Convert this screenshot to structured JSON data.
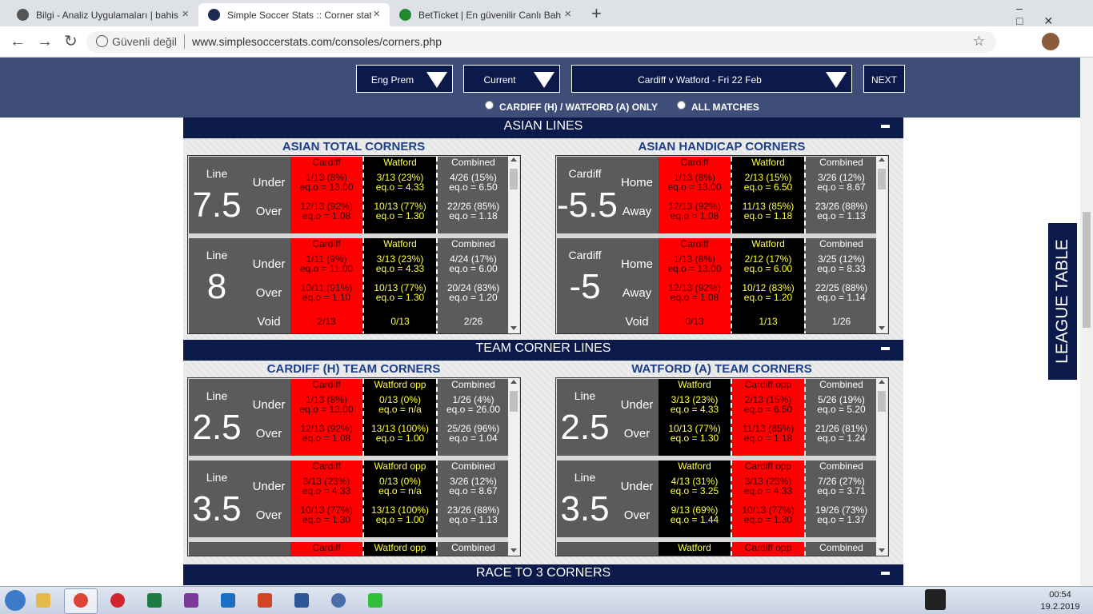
{
  "browser": {
    "tabs": [
      "Bilgi - Analiz Uygulamaları | bahis",
      "Simple Soccer Stats :: Corner stat",
      "BetTicket | En güvenilir Canlı Bah"
    ],
    "security": "Güvenli değil",
    "url": "www.simplesoccerstats.com/consoles/corners.php"
  },
  "header": {
    "selects": [
      "Eng Prem",
      "Current",
      "Cardiff v Watford - Fri 22 Feb"
    ],
    "next": "NEXT",
    "radios": [
      "CARDIFF (H) / WATFORD (A) ONLY",
      "ALL MATCHES"
    ]
  },
  "sections": [
    {
      "title": "ASIAN LINES",
      "panels": [
        {
          "title": "ASIAN TOTAL CORNERS",
          "headers": [
            "Cardiff",
            "Watford",
            "Combined"
          ],
          "colors": [
            "#ff0000",
            "#000000",
            "#5b5b5b"
          ],
          "text_colors": [
            "#3a0000",
            "#ffff33",
            "#ffffff"
          ],
          "blocks": [
            {
              "label": "Line",
              "line": "7.5",
              "rows": [
                "Under",
                "Over"
              ],
              "cells": [
                [
                  [
                    "1/13 (8%)",
                    "eq.o = 13.00"
                  ],
                  [
                    "3/13 (23%)",
                    "eq.o = 4.33"
                  ],
                  [
                    "4/26 (15%)",
                    "eq.o = 6.50"
                  ]
                ],
                [
                  [
                    "12/13 (92%)",
                    "eq.o = 1.08"
                  ],
                  [
                    "10/13 (77%)",
                    "eq.o = 1.30"
                  ],
                  [
                    "22/26 (85%)",
                    "eq.o = 1.18"
                  ]
                ]
              ]
            },
            {
              "label": "Line",
              "line": "8",
              "rows": [
                "Under",
                "Over",
                "Void"
              ],
              "cells": [
                [
                  [
                    "1/11 (9%)",
                    "eq.o = 11.00"
                  ],
                  [
                    "3/13 (23%)",
                    "eq.o = 4.33"
                  ],
                  [
                    "4/24 (17%)",
                    "eq.o = 6.00"
                  ]
                ],
                [
                  [
                    "10/11 (91%)",
                    "eq.o = 1.10"
                  ],
                  [
                    "10/13 (77%)",
                    "eq.o = 1.30"
                  ],
                  [
                    "20/24 (83%)",
                    "eq.o = 1.20"
                  ]
                ],
                [
                  [
                    "2/13"
                  ],
                  [
                    "0/13"
                  ],
                  [
                    "2/26"
                  ]
                ]
              ]
            }
          ]
        },
        {
          "title": "ASIAN HANDICAP CORNERS",
          "headers": [
            "Cardiff",
            "Watford",
            "Combined"
          ],
          "colors": [
            "#ff0000",
            "#000000",
            "#5b5b5b"
          ],
          "text_colors": [
            "#3a0000",
            "#ffff33",
            "#ffffff"
          ],
          "blocks": [
            {
              "label": "Cardiff",
              "line": "-5.5",
              "rows": [
                "Home",
                "Away"
              ],
              "cells": [
                [
                  [
                    "1/13 (8%)",
                    "eq.o = 13.00"
                  ],
                  [
                    "2/13 (15%)",
                    "eq.o = 6.50"
                  ],
                  [
                    "3/26 (12%)",
                    "eq.o = 8.67"
                  ]
                ],
                [
                  [
                    "12/13 (92%)",
                    "eq.o = 1.08"
                  ],
                  [
                    "11/13 (85%)",
                    "eq.o = 1.18"
                  ],
                  [
                    "23/26 (88%)",
                    "eq.o = 1.13"
                  ]
                ]
              ]
            },
            {
              "label": "Cardiff",
              "line": "-5",
              "rows": [
                "Home",
                "Away",
                "Void"
              ],
              "cells": [
                [
                  [
                    "1/13 (8%)",
                    "eq.o = 13.00"
                  ],
                  [
                    "2/12 (17%)",
                    "eq.o = 6.00"
                  ],
                  [
                    "3/25 (12%)",
                    "eq.o = 8.33"
                  ]
                ],
                [
                  [
                    "12/13 (92%)",
                    "eq.o = 1.08"
                  ],
                  [
                    "10/12 (83%)",
                    "eq.o = 1.20"
                  ],
                  [
                    "22/25 (88%)",
                    "eq.o = 1.14"
                  ]
                ],
                [
                  [
                    "0/13"
                  ],
                  [
                    "1/13"
                  ],
                  [
                    "1/26"
                  ]
                ]
              ]
            }
          ]
        }
      ]
    },
    {
      "title": "TEAM CORNER LINES",
      "panels": [
        {
          "title": "CARDIFF (H) TEAM CORNERS",
          "headers": [
            "Cardiff",
            "Watford opp",
            "Combined"
          ],
          "colors": [
            "#ff0000",
            "#000000",
            "#5b5b5b"
          ],
          "text_colors": [
            "#3a0000",
            "#ffff33",
            "#ffffff"
          ],
          "blocks": [
            {
              "label": "Line",
              "line": "2.5",
              "rows": [
                "Under",
                "Over"
              ],
              "cells": [
                [
                  [
                    "1/13 (8%)",
                    "eq.o = 13.00"
                  ],
                  [
                    "0/13 (0%)",
                    "eq.o = n/a"
                  ],
                  [
                    "1/26 (4%)",
                    "eq.o = 26.00"
                  ]
                ],
                [
                  [
                    "12/13 (92%)",
                    "eq.o = 1.08"
                  ],
                  [
                    "13/13 (100%)",
                    "eq.o = 1.00"
                  ],
                  [
                    "25/26 (96%)",
                    "eq.o = 1.04"
                  ]
                ]
              ]
            },
            {
              "label": "Line",
              "line": "3.5",
              "rows": [
                "Under",
                "Over"
              ],
              "cells": [
                [
                  [
                    "3/13 (23%)",
                    "eq.o = 4.33"
                  ],
                  [
                    "0/13 (0%)",
                    "eq.o = n/a"
                  ],
                  [
                    "3/26 (12%)",
                    "eq.o = 8.67"
                  ]
                ],
                [
                  [
                    "10/13 (77%)",
                    "eq.o = 1.30"
                  ],
                  [
                    "13/13 (100%)",
                    "eq.o = 1.00"
                  ],
                  [
                    "23/26 (88%)",
                    "eq.o = 1.13"
                  ]
                ]
              ]
            }
          ]
        },
        {
          "title": "WATFORD (A) TEAM CORNERS",
          "headers": [
            "Watford",
            "Cardiff opp",
            "Combined"
          ],
          "colors": [
            "#000000",
            "#ff0000",
            "#5b5b5b"
          ],
          "text_colors": [
            "#ffff33",
            "#3a0000",
            "#ffffff"
          ],
          "blocks": [
            {
              "label": "Line",
              "line": "2.5",
              "rows": [
                "Under",
                "Over"
              ],
              "cells": [
                [
                  [
                    "3/13 (23%)",
                    "eq.o = 4.33"
                  ],
                  [
                    "2/13 (15%)",
                    "eq.o = 6.50"
                  ],
                  [
                    "5/26 (19%)",
                    "eq.o = 5.20"
                  ]
                ],
                [
                  [
                    "10/13 (77%)",
                    "eq.o = 1.30"
                  ],
                  [
                    "11/13 (85%)",
                    "eq.o = 1.18"
                  ],
                  [
                    "21/26 (81%)",
                    "eq.o = 1.24"
                  ]
                ]
              ]
            },
            {
              "label": "Line",
              "line": "3.5",
              "rows": [
                "Under",
                "Over"
              ],
              "cells": [
                [
                  [
                    "4/13 (31%)",
                    "eq.o = 3.25"
                  ],
                  [
                    "3/13 (23%)",
                    "eq.o = 4.33"
                  ],
                  [
                    "7/26 (27%)",
                    "eq.o = 3.71"
                  ]
                ],
                [
                  [
                    "9/13 (69%)",
                    "eq.o = 1.44"
                  ],
                  [
                    "10/13 (77%)",
                    "eq.o = 1.30"
                  ],
                  [
                    "19/26 (73%)",
                    "eq.o = 1.37"
                  ]
                ]
              ]
            }
          ]
        }
      ]
    },
    {
      "title": "RACE TO 3 CORNERS"
    }
  ],
  "side_tab": "LEAGUE TABLE",
  "taskbar": {
    "time": "00:54",
    "date": "19.2.2019"
  }
}
